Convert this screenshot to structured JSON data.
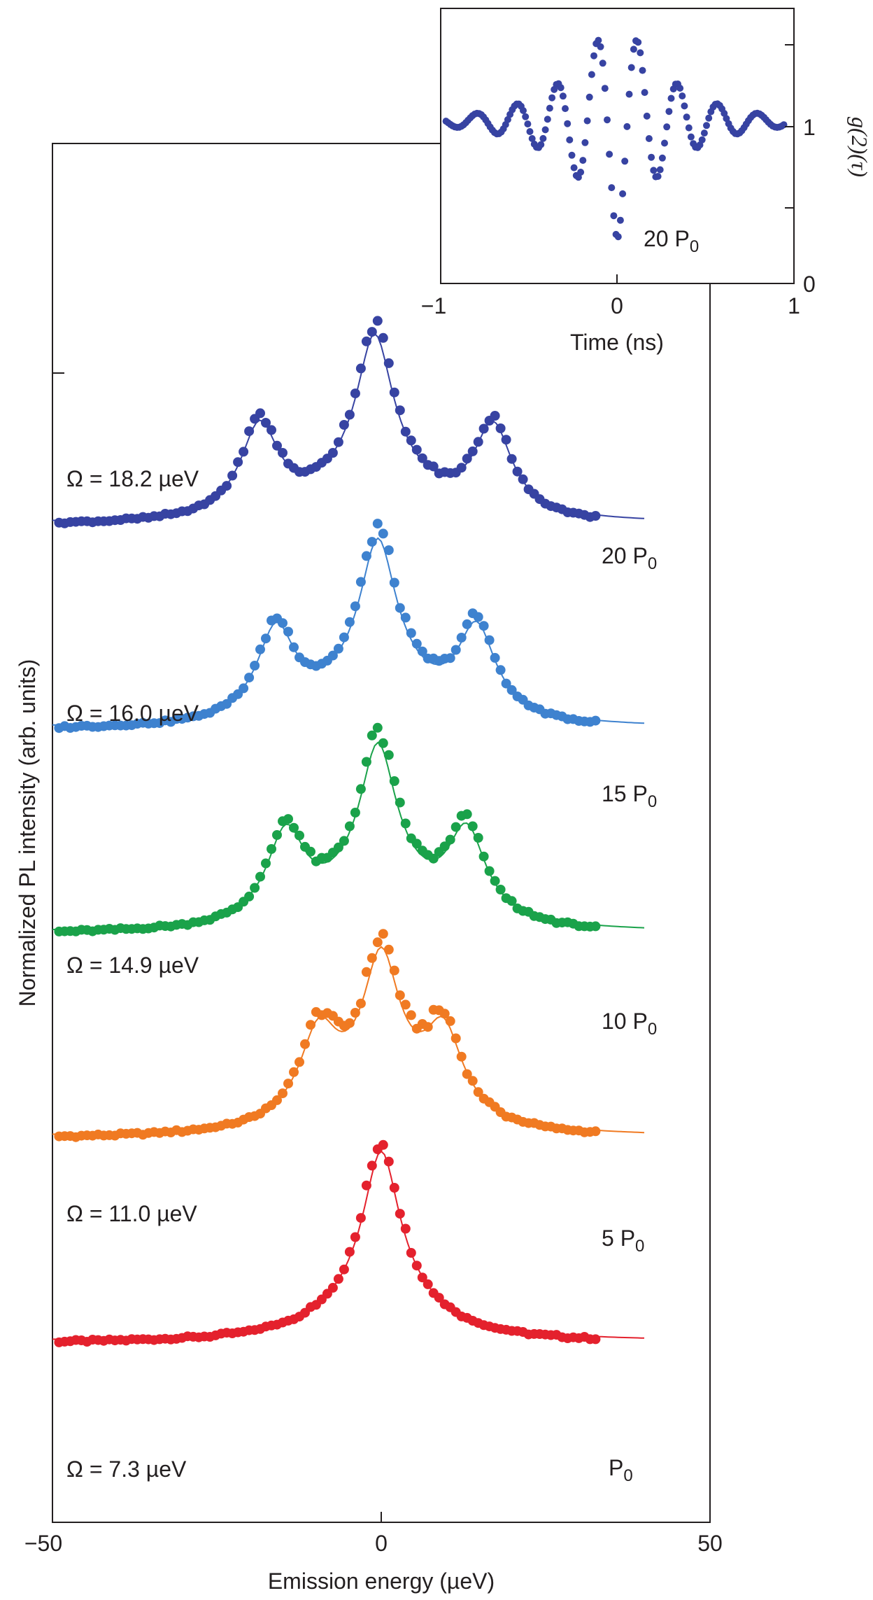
{
  "chart_data": [
    {
      "type": "line",
      "xlabel": "Emission energy (µeV)",
      "ylabel": "Normalized PL intensity (arb. units)",
      "xlim": [
        -50,
        50
      ],
      "x_ticks": [
        "−50",
        "0",
        "50"
      ],
      "grid": false,
      "series": [
        {
          "power_label": "P",
          "power_sub": "0",
          "omega_label": "Ω = 7.3 µeV",
          "color": "#e4212d",
          "offset": 0.0,
          "amplitude": 1.0,
          "center": 0.0,
          "sidepeaks": [],
          "sidepeak_height": 0.0
        },
        {
          "power_label": "5 P",
          "power_sub": "0",
          "omega_label": "Ω = 11.0 µeV",
          "color": "#f07a22",
          "offset": 1.0,
          "amplitude": 1.0,
          "center": 0.0,
          "sidepeaks": [
            -9.5,
            9.5
          ],
          "sidepeak_height": 0.48
        },
        {
          "power_label": "10 P",
          "power_sub": "0",
          "omega_label": "Ω = 14.9 µeV",
          "color": "#1aa24a",
          "offset": 2.0,
          "amplitude": 1.0,
          "center": -0.5,
          "sidepeaks": [
            -14.5,
            13.0
          ],
          "sidepeak_height": 0.48
        },
        {
          "power_label": "15 P",
          "power_sub": "0",
          "omega_label": "Ω = 16.0 µeV",
          "color": "#3e82cf",
          "offset": 3.0,
          "amplitude": 1.0,
          "center": -0.5,
          "sidepeaks": [
            -16.0,
            14.5
          ],
          "sidepeak_height": 0.48
        },
        {
          "power_label": "20 P",
          "power_sub": "0",
          "omega_label": "Ω = 18.2 µeV",
          "color": "#3743a2",
          "offset": 4.0,
          "amplitude": 1.0,
          "center": -1.0,
          "sidepeaks": [
            -18.5,
            17.0
          ],
          "sidepeak_height": 0.48
        }
      ]
    },
    {
      "type": "scatter",
      "xlabel": "Time (ns)",
      "ylabel": "g(2)(τ)",
      "xlim": [
        -1,
        1
      ],
      "ylim": [
        0,
        1.7
      ],
      "x_ticks": [
        "−1",
        "0",
        "1"
      ],
      "y_ticks": [
        "0",
        "1"
      ],
      "annotation": "20 P",
      "annotation_sub": "0",
      "color": "#3743a2",
      "rabi_frequency_ghz": 4.4,
      "dip_minimum": 0.27,
      "decay_time_ns": 0.3
    }
  ]
}
